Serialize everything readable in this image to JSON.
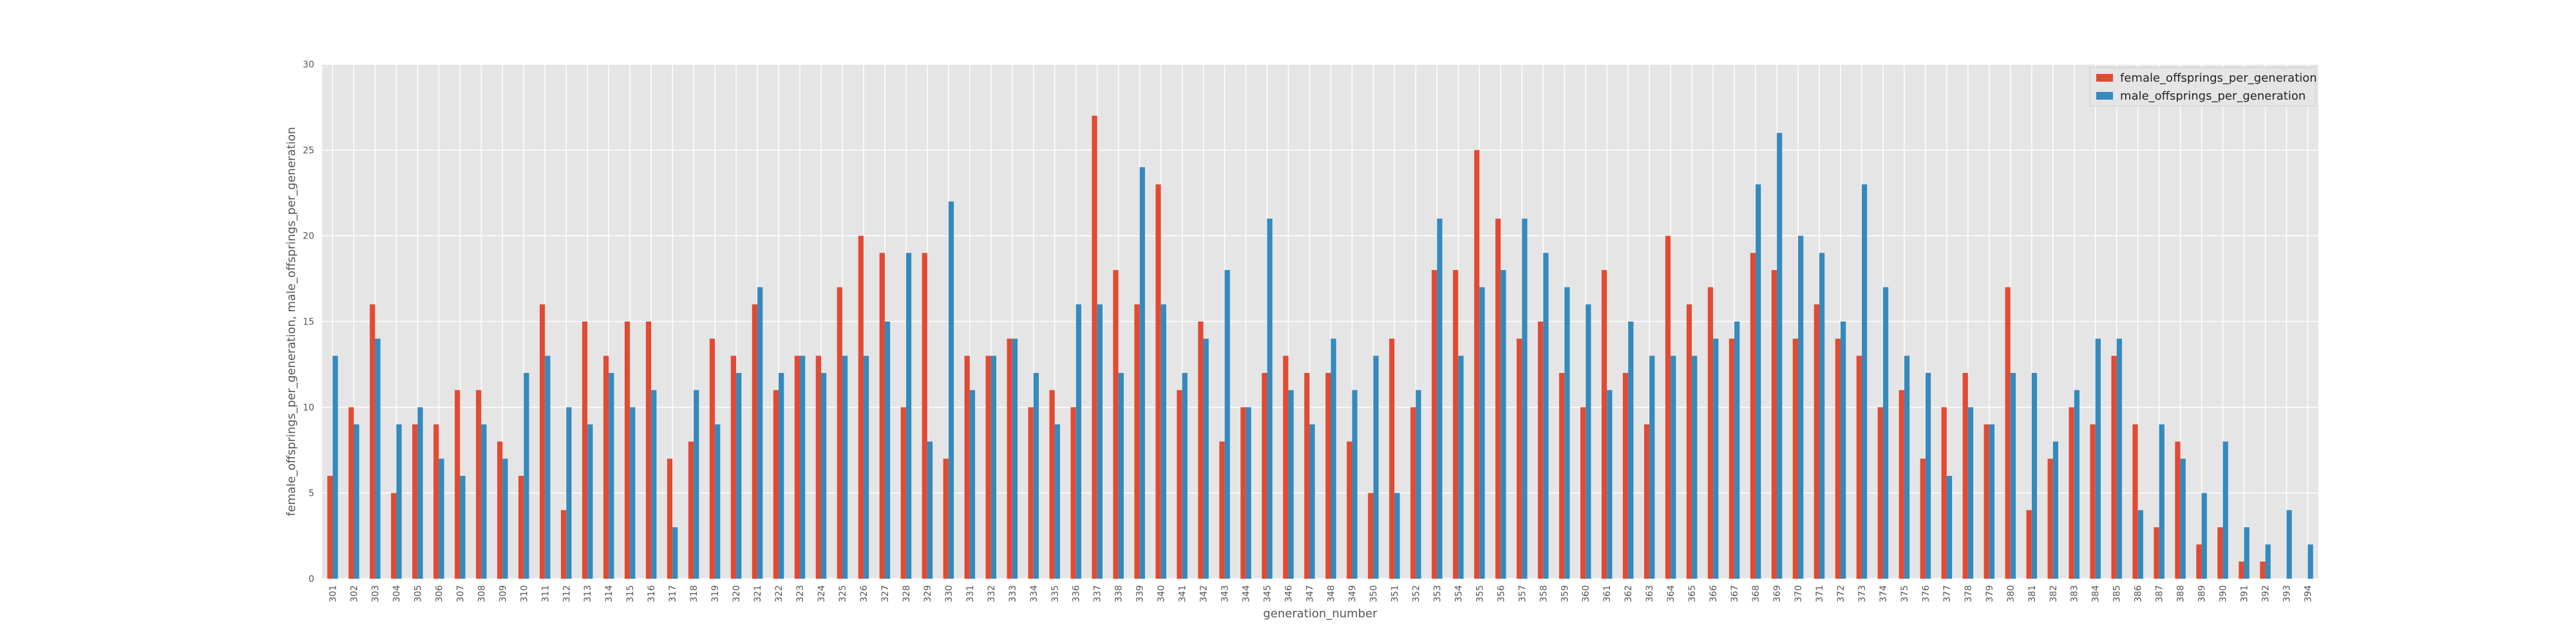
{
  "chart_data": {
    "type": "bar",
    "xlabel": "generation_number",
    "ylabel": "female_offsprings_per_generation, male_offsprings_per_generation",
    "ylim": [
      0,
      30
    ],
    "yticks": [
      0,
      5,
      10,
      15,
      20,
      25,
      30
    ],
    "grid": true,
    "legend_position": "top-right",
    "categories": [
      "301",
      "302",
      "303",
      "304",
      "305",
      "306",
      "307",
      "308",
      "309",
      "310",
      "311",
      "312",
      "313",
      "314",
      "315",
      "316",
      "317",
      "318",
      "319",
      "320",
      "321",
      "322",
      "323",
      "324",
      "325",
      "326",
      "327",
      "328",
      "329",
      "330",
      "331",
      "332",
      "333",
      "334",
      "335",
      "336",
      "337",
      "338",
      "339",
      "340",
      "341",
      "342",
      "343",
      "344",
      "345",
      "346",
      "347",
      "348",
      "349",
      "350",
      "351",
      "352",
      "353",
      "354",
      "355",
      "356",
      "357",
      "358",
      "359",
      "360",
      "361",
      "362",
      "363",
      "364",
      "365",
      "366",
      "367",
      "368",
      "369",
      "370",
      "371",
      "372",
      "373",
      "374",
      "375",
      "376",
      "377",
      "378",
      "379",
      "380",
      "381",
      "382",
      "383",
      "384",
      "385",
      "386",
      "387",
      "388",
      "389",
      "390",
      "391",
      "392",
      "393",
      "394"
    ],
    "series": [
      {
        "name": "female_offsprings_per_generation",
        "color": "#E24A33",
        "values": [
          6,
          10,
          16,
          5,
          9,
          9,
          11,
          11,
          8,
          6,
          16,
          4,
          15,
          13,
          15,
          15,
          7,
          8,
          14,
          13,
          16,
          11,
          13,
          13,
          17,
          20,
          19,
          10,
          19,
          7,
          13,
          13,
          14,
          10,
          11,
          10,
          27,
          18,
          16,
          23,
          11,
          15,
          8,
          10,
          12,
          13,
          12,
          12,
          8,
          5,
          14,
          10,
          18,
          18,
          25,
          21,
          14,
          15,
          12,
          10,
          18,
          12,
          9,
          20,
          16,
          17,
          14,
          19,
          18,
          14,
          16,
          14,
          13,
          10,
          11,
          7,
          10,
          12,
          9,
          17,
          4,
          7,
          10,
          9,
          13,
          9,
          3,
          8,
          2,
          3,
          1,
          1,
          0,
          0
        ]
      },
      {
        "name": "male_offsprings_per_generation",
        "color": "#348ABD",
        "values": [
          13,
          9,
          14,
          9,
          10,
          7,
          6,
          9,
          7,
          12,
          13,
          10,
          9,
          12,
          10,
          11,
          3,
          11,
          9,
          12,
          17,
          12,
          13,
          12,
          13,
          13,
          15,
          19,
          8,
          22,
          11,
          13,
          14,
          12,
          9,
          16,
          16,
          12,
          24,
          16,
          12,
          14,
          18,
          10,
          21,
          11,
          9,
          14,
          11,
          13,
          5,
          11,
          21,
          13,
          17,
          18,
          21,
          19,
          17,
          16,
          11,
          15,
          13,
          13,
          13,
          14,
          15,
          23,
          26,
          20,
          19,
          15,
          23,
          17,
          13,
          12,
          6,
          10,
          9,
          12,
          12,
          8,
          11,
          14,
          14,
          4,
          9,
          7,
          5,
          8,
          3,
          2,
          4,
          2
        ]
      }
    ]
  }
}
